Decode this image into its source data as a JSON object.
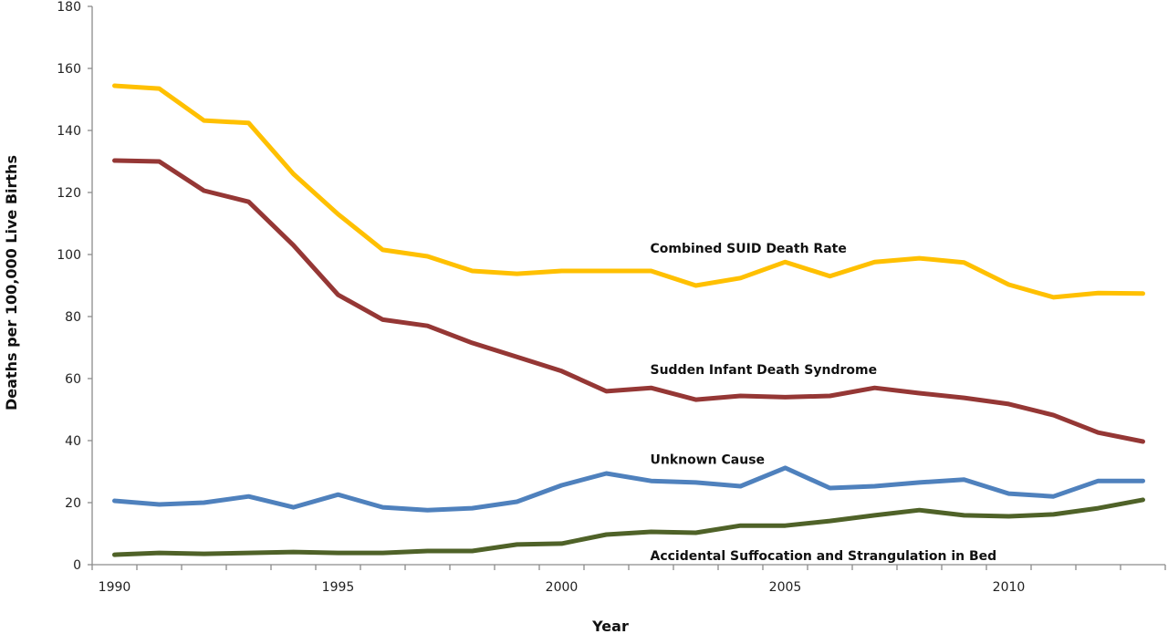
{
  "chart_data": {
    "type": "line",
    "title": "",
    "xlabel": "Year",
    "ylabel": "Deaths per 100,000 Live Births",
    "ylim": [
      0,
      180
    ],
    "yticks": [
      0,
      20,
      40,
      60,
      80,
      100,
      120,
      140,
      160,
      180
    ],
    "x": [
      1990,
      1991,
      1992,
      1993,
      1994,
      1995,
      1996,
      1997,
      1998,
      1999,
      2000,
      2001,
      2002,
      2003,
      2004,
      2005,
      2006,
      2007,
      2008,
      2009,
      2010,
      2011,
      2012,
      2013
    ],
    "xtick_labels": [
      "1990",
      "1995",
      "2000",
      "2005",
      "2010"
    ],
    "grid": false,
    "legend": "none",
    "series": [
      {
        "name": "Combined SUID Death Rate",
        "color": "#FFC000",
        "values": [
          154.4,
          153.5,
          143.2,
          142.4,
          126.0,
          113.0,
          101.5,
          99.4,
          94.7,
          93.8,
          94.7,
          94.7,
          94.7,
          90.0,
          92.4,
          97.6,
          93.0,
          97.6,
          98.8,
          97.4,
          90.3,
          86.2,
          87.6,
          87.4
        ]
      },
      {
        "name": "Sudden Infant Death Syndrome",
        "color": "#953735",
        "values": [
          130.3,
          130.0,
          120.6,
          117.0,
          103.0,
          87.0,
          79.0,
          77.0,
          71.5,
          67.0,
          62.4,
          55.9,
          57.0,
          53.2,
          54.4,
          54.0,
          54.4,
          57.0,
          55.3,
          53.8,
          51.8,
          48.2,
          42.6,
          39.7
        ]
      },
      {
        "name": "Unknown Cause",
        "color": "#4F81BD",
        "values": [
          20.6,
          19.4,
          20.0,
          22.0,
          18.5,
          22.6,
          18.5,
          17.6,
          18.2,
          20.3,
          25.6,
          29.4,
          27.0,
          26.5,
          25.3,
          31.2,
          24.7,
          25.3,
          26.5,
          27.4,
          22.9,
          22.0,
          27.0,
          27.0
        ]
      },
      {
        "name": "Accidental Suffocation and Strangulation in Bed",
        "color": "#4F6228",
        "values": [
          3.2,
          3.8,
          3.5,
          3.8,
          4.1,
          3.8,
          3.8,
          4.4,
          4.4,
          6.5,
          6.8,
          9.7,
          10.6,
          10.3,
          12.6,
          12.6,
          14.1,
          15.9,
          17.6,
          15.9,
          15.6,
          16.2,
          18.2,
          20.9
        ]
      }
    ],
    "annotations": [
      {
        "text": "Combined SUID Death Rate",
        "series": 0,
        "anchor_year": 2002,
        "anchor_value": 102
      },
      {
        "text": "Sudden Infant Death Syndrome",
        "series": 1,
        "anchor_year": 2002,
        "anchor_value": 63
      },
      {
        "text": "Unknown Cause",
        "series": 2,
        "anchor_year": 2002,
        "anchor_value": 34
      },
      {
        "text": "Accidental Suffocation and Strangulation in Bed",
        "series": 3,
        "anchor_year": 2002,
        "anchor_value": 3
      }
    ]
  }
}
